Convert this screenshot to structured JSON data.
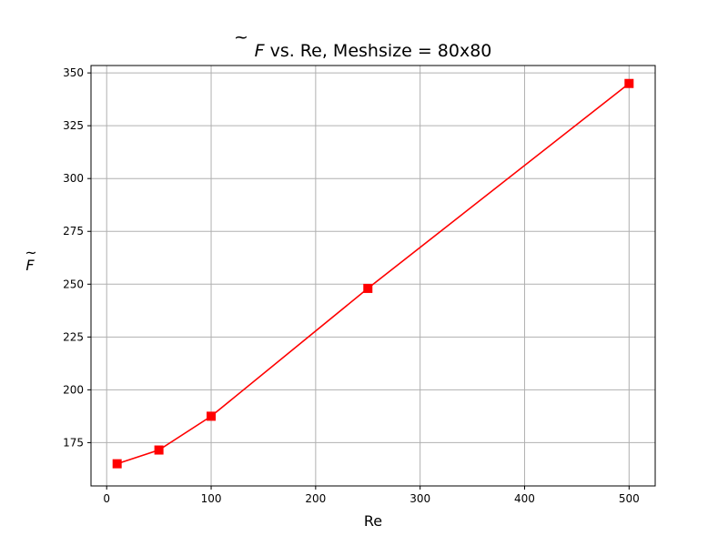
{
  "chart_data": {
    "type": "line",
    "title_pre": "F",
    "title_tilde": "~",
    "title_post": " vs. Re, Meshsize = 80x80",
    "xlabel": "Re",
    "ylabel": "F",
    "ylabel_tilde": "~",
    "xlim": [
      -15,
      525
    ],
    "ylim": [
      154.5,
      353.5
    ],
    "xticks": [
      0,
      100,
      200,
      300,
      400,
      500
    ],
    "xtick_labels": [
      "0",
      "100",
      "200",
      "300",
      "400",
      "500"
    ],
    "yticks": [
      175,
      200,
      225,
      250,
      275,
      300,
      325,
      350
    ],
    "ytick_labels": [
      "175",
      "200",
      "225",
      "250",
      "275",
      "300",
      "325",
      "350"
    ],
    "grid": true,
    "series": [
      {
        "color": "#ff0000",
        "marker": "square",
        "x": [
          10,
          50,
          100,
          250,
          500
        ],
        "y": [
          165,
          171.5,
          187.5,
          248,
          345
        ]
      }
    ]
  }
}
